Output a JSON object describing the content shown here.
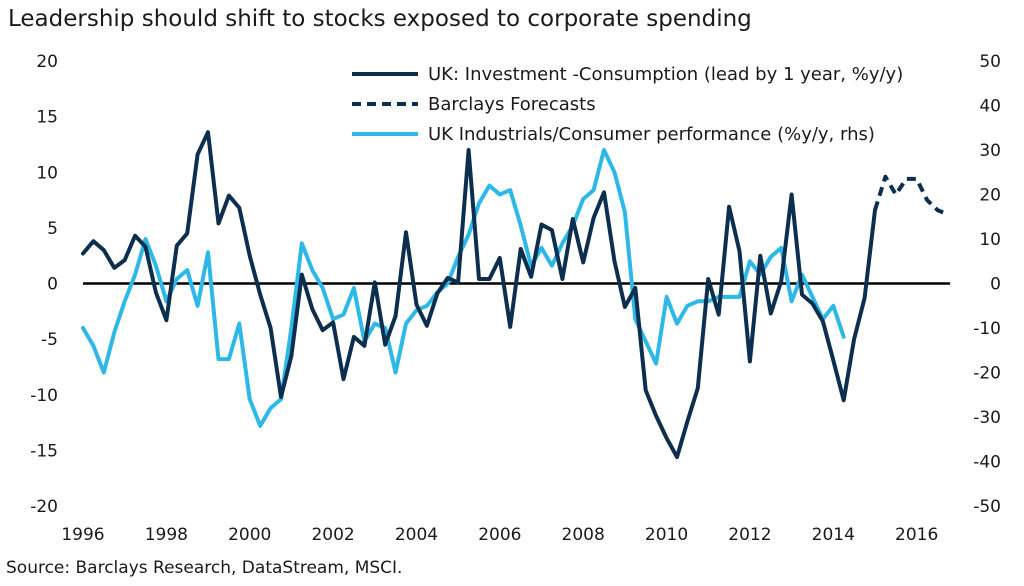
{
  "chart_data": {
    "type": "line",
    "title": "Leadership should shift to stocks exposed to corporate spending",
    "source": "Source: Barclays Research, DataStream, MSCI.",
    "xlim": [
      1996,
      2016.8
    ],
    "x_ticks": [
      1996,
      1998,
      2000,
      2002,
      2004,
      2006,
      2008,
      2010,
      2012,
      2014,
      2016
    ],
    "y_left": {
      "ylim": [
        -20,
        20
      ],
      "ticks": [
        -20,
        -15,
        -10,
        -5,
        0,
        5,
        10,
        15,
        20
      ]
    },
    "y_right": {
      "ylim": [
        -50,
        50
      ],
      "ticks": [
        -50,
        -40,
        -30,
        -20,
        -10,
        0,
        10,
        20,
        30,
        40,
        50
      ]
    },
    "grid": false,
    "legend_position": "top-right",
    "colors": {
      "dark": "#0d2f4f",
      "light": "#2db8e8",
      "zero": "#000000"
    },
    "series": [
      {
        "name": "UK: Investment -Consumption (lead by 1 year, %y/y)",
        "axis": "left",
        "style": "solid",
        "color": "#0d2f4f",
        "points": [
          [
            1996.0,
            2.7
          ],
          [
            1996.25,
            3.8
          ],
          [
            1996.5,
            3.0
          ],
          [
            1996.75,
            1.4
          ],
          [
            1997.0,
            2.1
          ],
          [
            1997.25,
            4.3
          ],
          [
            1997.5,
            3.3
          ],
          [
            1997.75,
            -0.8
          ],
          [
            1998.0,
            -3.3
          ],
          [
            1998.25,
            3.4
          ],
          [
            1998.5,
            4.5
          ],
          [
            1998.75,
            11.6
          ],
          [
            1999.0,
            13.6
          ],
          [
            1999.25,
            5.4
          ],
          [
            1999.5,
            7.9
          ],
          [
            1999.75,
            6.8
          ],
          [
            2000.0,
            2.5
          ],
          [
            2000.25,
            -1.0
          ],
          [
            2000.5,
            -4.0
          ],
          [
            2000.75,
            -10.2
          ],
          [
            2001.0,
            -6.5
          ],
          [
            2001.25,
            0.8
          ],
          [
            2001.5,
            -2.3
          ],
          [
            2001.75,
            -4.2
          ],
          [
            2002.0,
            -3.5
          ],
          [
            2002.25,
            -8.6
          ],
          [
            2002.5,
            -4.8
          ],
          [
            2002.75,
            -5.6
          ],
          [
            2003.0,
            0.1
          ],
          [
            2003.25,
            -5.5
          ],
          [
            2003.5,
            -2.9
          ],
          [
            2003.75,
            4.6
          ],
          [
            2004.0,
            -1.9
          ],
          [
            2004.25,
            -3.8
          ],
          [
            2004.5,
            -0.9
          ],
          [
            2004.75,
            0.5
          ],
          [
            2005.0,
            0.1
          ],
          [
            2005.25,
            12.0
          ],
          [
            2005.5,
            0.4
          ],
          [
            2005.75,
            0.4
          ],
          [
            2006.0,
            2.3
          ],
          [
            2006.25,
            -3.9
          ],
          [
            2006.5,
            3.1
          ],
          [
            2006.75,
            0.6
          ],
          [
            2007.0,
            5.3
          ],
          [
            2007.25,
            4.8
          ],
          [
            2007.5,
            0.4
          ],
          [
            2007.75,
            5.8
          ],
          [
            2008.0,
            1.9
          ],
          [
            2008.25,
            5.9
          ],
          [
            2008.5,
            8.2
          ],
          [
            2008.75,
            2.0
          ],
          [
            2009.0,
            -2.1
          ],
          [
            2009.25,
            -0.4
          ],
          [
            2009.5,
            -9.6
          ],
          [
            2009.75,
            -11.9
          ],
          [
            2010.0,
            -13.9
          ],
          [
            2010.25,
            -15.6
          ],
          [
            2010.5,
            -12.4
          ],
          [
            2010.75,
            -9.4
          ],
          [
            2011.0,
            0.4
          ],
          [
            2011.25,
            -2.8
          ],
          [
            2011.5,
            6.9
          ],
          [
            2011.75,
            2.9
          ],
          [
            2012.0,
            -7.0
          ],
          [
            2012.25,
            2.5
          ],
          [
            2012.5,
            -2.7
          ],
          [
            2012.75,
            0.2
          ],
          [
            2013.0,
            8.0
          ],
          [
            2013.25,
            -1.0
          ],
          [
            2013.5,
            -1.8
          ],
          [
            2013.75,
            -3.4
          ],
          [
            2014.0,
            -6.9
          ],
          [
            2014.25,
            -10.5
          ],
          [
            2014.5,
            -5.0
          ],
          [
            2014.75,
            -1.3
          ],
          [
            2015.0,
            6.6
          ]
        ]
      },
      {
        "name": "Barclays Forecasts",
        "axis": "left",
        "style": "dashed",
        "color": "#0d2f4f",
        "points": [
          [
            2015.0,
            6.6
          ],
          [
            2015.25,
            9.6
          ],
          [
            2015.5,
            8.0
          ],
          [
            2015.75,
            9.4
          ],
          [
            2016.0,
            9.4
          ],
          [
            2016.25,
            7.5
          ],
          [
            2016.5,
            6.6
          ],
          [
            2016.75,
            6.2
          ]
        ]
      },
      {
        "name": "UK Industrials/Consumer performance (%y/y, rhs)",
        "axis": "right",
        "style": "solid",
        "color": "#2db8e8",
        "points": [
          [
            1996.0,
            -10.0
          ],
          [
            1996.25,
            -14.0
          ],
          [
            1996.5,
            -20.0
          ],
          [
            1996.75,
            -11.0
          ],
          [
            1997.0,
            -4.0
          ],
          [
            1997.25,
            2.0
          ],
          [
            1997.5,
            10.0
          ],
          [
            1997.75,
            4.0
          ],
          [
            1998.0,
            -4.0
          ],
          [
            1998.25,
            1.0
          ],
          [
            1998.5,
            3.0
          ],
          [
            1998.75,
            -5.0
          ],
          [
            1999.0,
            7.0
          ],
          [
            1999.25,
            -17.0
          ],
          [
            1999.5,
            -17.0
          ],
          [
            1999.75,
            -9.0
          ],
          [
            2000.0,
            -26.0
          ],
          [
            2000.25,
            -32.0
          ],
          [
            2000.5,
            -28.0
          ],
          [
            2000.75,
            -26.0
          ],
          [
            2001.0,
            -10.0
          ],
          [
            2001.25,
            9.0
          ],
          [
            2001.5,
            3.0
          ],
          [
            2001.75,
            -1.0
          ],
          [
            2002.0,
            -8.0
          ],
          [
            2002.25,
            -7.0
          ],
          [
            2002.5,
            -1.0
          ],
          [
            2002.75,
            -13.0
          ],
          [
            2003.0,
            -9.0
          ],
          [
            2003.25,
            -10.0
          ],
          [
            2003.5,
            -20.0
          ],
          [
            2003.75,
            -9.0
          ],
          [
            2004.0,
            -6.0
          ],
          [
            2004.25,
            -5.0
          ],
          [
            2004.5,
            -2.0
          ],
          [
            2004.75,
            0.0
          ],
          [
            2005.0,
            6.0
          ],
          [
            2005.25,
            11.0
          ],
          [
            2005.5,
            18.0
          ],
          [
            2005.75,
            22.0
          ],
          [
            2006.0,
            20.0
          ],
          [
            2006.25,
            21.0
          ],
          [
            2006.5,
            13.0
          ],
          [
            2006.75,
            4.0
          ],
          [
            2007.0,
            8.0
          ],
          [
            2007.25,
            4.0
          ],
          [
            2007.5,
            9.0
          ],
          [
            2007.75,
            13.0
          ],
          [
            2008.0,
            19.0
          ],
          [
            2008.25,
            21.0
          ],
          [
            2008.5,
            30.0
          ],
          [
            2008.75,
            25.0
          ],
          [
            2009.0,
            16.0
          ],
          [
            2009.25,
            -8.0
          ],
          [
            2009.5,
            -13.0
          ],
          [
            2009.75,
            -18.0
          ],
          [
            2010.0,
            -3.0
          ],
          [
            2010.25,
            -9.0
          ],
          [
            2010.5,
            -5.0
          ],
          [
            2010.75,
            -4.0
          ],
          [
            2011.0,
            -4.0
          ],
          [
            2011.25,
            -3.0
          ],
          [
            2011.5,
            -3.0
          ],
          [
            2011.75,
            -3.0
          ],
          [
            2012.0,
            5.0
          ],
          [
            2012.25,
            2.0
          ],
          [
            2012.5,
            6.0
          ],
          [
            2012.75,
            8.0
          ],
          [
            2013.0,
            -4.0
          ],
          [
            2013.25,
            2.0
          ],
          [
            2013.5,
            -3.0
          ],
          [
            2013.75,
            -8.0
          ],
          [
            2014.0,
            -5.0
          ],
          [
            2014.25,
            -12.0
          ]
        ]
      }
    ]
  }
}
